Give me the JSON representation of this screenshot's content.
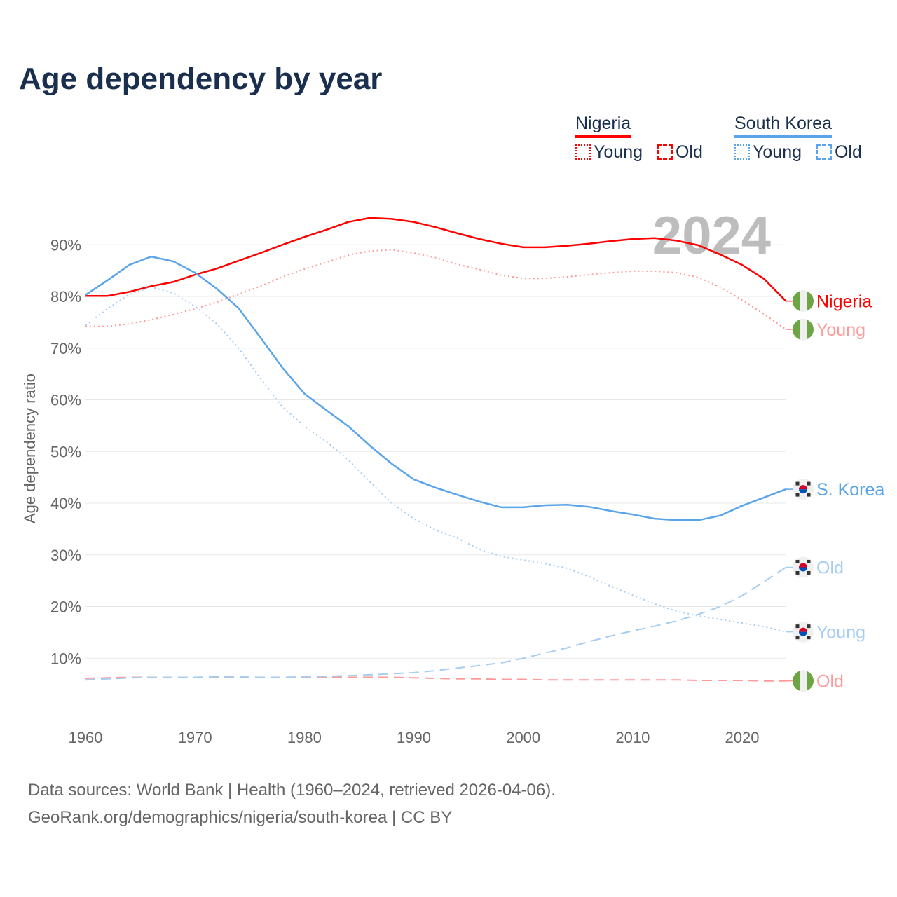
{
  "chart_data": {
    "type": "line",
    "title": "Age dependency by year",
    "ylabel": "Age dependency ratio",
    "xlabel": "",
    "xlim": [
      1960,
      2024
    ],
    "ylim": [
      0,
      100
    ],
    "x_ticks": [
      "1960",
      "1970",
      "1980",
      "1990",
      "2000",
      "2010",
      "2020"
    ],
    "y_ticks": [
      "10%",
      "20%",
      "30%",
      "40%",
      "50%",
      "60%",
      "70%",
      "80%",
      "90%"
    ],
    "year_watermark": "2024",
    "x": [
      1960,
      1962,
      1964,
      1966,
      1968,
      1970,
      1972,
      1974,
      1976,
      1978,
      1980,
      1982,
      1984,
      1986,
      1988,
      1990,
      1992,
      1994,
      1996,
      1998,
      2000,
      2002,
      2004,
      2006,
      2008,
      2010,
      2012,
      2014,
      2016,
      2018,
      2020,
      2022,
      2024
    ],
    "series": [
      {
        "name": "Nigeria",
        "end_label": "Nigeria",
        "flag": "nigeria",
        "color": "#ff0000",
        "dash": "solid",
        "values": [
          80.1,
          80.1,
          80.9,
          82.0,
          82.8,
          84.2,
          85.4,
          86.9,
          88.4,
          90.0,
          91.5,
          92.9,
          94.4,
          95.2,
          95.0,
          94.4,
          93.4,
          92.2,
          91.1,
          90.2,
          89.5,
          89.5,
          89.8,
          90.2,
          90.7,
          91.1,
          91.3,
          90.8,
          89.9,
          88.1,
          86.1,
          83.4,
          79.1
        ]
      },
      {
        "name": "Nigeria Young",
        "end_label": "Young",
        "flag": "nigeria",
        "color": "#ff9a9a",
        "dash": "dotted",
        "values": [
          74.2,
          74.2,
          74.7,
          75.5,
          76.5,
          77.6,
          78.9,
          80.4,
          82.0,
          83.8,
          85.3,
          86.6,
          88.0,
          88.8,
          89.0,
          88.4,
          87.5,
          86.2,
          85.2,
          84.1,
          83.5,
          83.5,
          83.8,
          84.2,
          84.6,
          84.9,
          84.9,
          84.6,
          83.7,
          81.8,
          79.3,
          76.6,
          73.6
        ]
      },
      {
        "name": "Nigeria Old",
        "end_label": "Old",
        "flag": "nigeria",
        "color": "#ff9a9a",
        "dash": "dashed",
        "values": [
          6.1,
          6.2,
          6.3,
          6.3,
          6.3,
          6.3,
          6.3,
          6.3,
          6.3,
          6.3,
          6.3,
          6.3,
          6.3,
          6.3,
          6.3,
          6.2,
          6.1,
          6.0,
          6.0,
          5.9,
          5.9,
          5.8,
          5.8,
          5.8,
          5.8,
          5.8,
          5.8,
          5.8,
          5.7,
          5.7,
          5.7,
          5.6,
          5.6
        ]
      },
      {
        "name": "South Korea",
        "end_label": "S. Korea",
        "flag": "korea",
        "color": "#5aa5ea",
        "dash": "solid",
        "values": [
          80.3,
          83.1,
          86.1,
          87.7,
          86.8,
          84.6,
          81.5,
          77.7,
          72.0,
          66.2,
          61.2,
          58.0,
          54.9,
          51.1,
          47.6,
          44.6,
          43.0,
          41.6,
          40.3,
          39.2,
          39.2,
          39.6,
          39.7,
          39.3,
          38.5,
          37.8,
          37.0,
          36.7,
          36.7,
          37.6,
          39.5,
          41.1,
          42.7
        ]
      },
      {
        "name": "South Korea Old",
        "end_label": "Old",
        "flag": "korea",
        "color": "#a6cdf2",
        "dash": "dashed",
        "values": [
          5.8,
          6.0,
          6.2,
          6.3,
          6.3,
          6.3,
          6.4,
          6.4,
          6.3,
          6.3,
          6.4,
          6.5,
          6.6,
          6.8,
          7.0,
          7.2,
          7.6,
          8.1,
          8.6,
          9.1,
          10.0,
          11.0,
          12.0,
          13.2,
          14.3,
          15.3,
          16.2,
          17.2,
          18.5,
          20.0,
          22.1,
          24.8,
          27.6
        ]
      },
      {
        "name": "South Korea Young",
        "end_label": "Young",
        "flag": "korea",
        "color": "#a6cdf2",
        "dash": "dotted",
        "values": [
          74.4,
          77.6,
          80.4,
          81.8,
          80.7,
          78.1,
          74.7,
          70.0,
          64.1,
          58.6,
          54.9,
          51.9,
          48.4,
          44.1,
          40.0,
          37.0,
          34.8,
          33.2,
          31.1,
          29.7,
          29.0,
          28.3,
          27.4,
          25.8,
          23.9,
          22.2,
          20.5,
          19.1,
          18.2,
          17.5,
          16.8,
          16.1,
          15.1
        ]
      }
    ],
    "legend": {
      "placement": "top-right",
      "groups": [
        {
          "country": "Nigeria",
          "color": "#ff0000",
          "items": [
            "Young",
            "Old"
          ]
        },
        {
          "country": "South Korea",
          "color": "#5aa5ea",
          "items": [
            "Young",
            "Old"
          ]
        }
      ]
    }
  },
  "source": {
    "line1": "Data sources: World Bank | Health (1960–2024, retrieved 2026-04-06).",
    "line2": "GeoRank.org/demographics/nigeria/south-korea | CC BY"
  }
}
